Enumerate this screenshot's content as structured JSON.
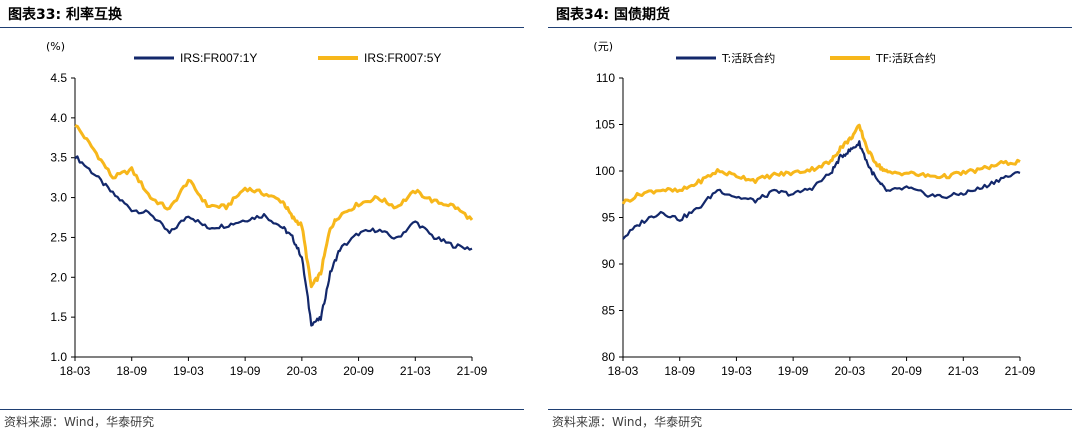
{
  "panels": [
    {
      "fig_title": "图表33:  利率互换",
      "source": "资料来源：Wind，华泰研究"
    },
    {
      "fig_title": "图表34:  国债期货",
      "source": "资料来源：Wind，华泰研究"
    }
  ],
  "chart_data": [
    {
      "type": "line",
      "title": "",
      "unit_label": "(%)",
      "xlabel": "",
      "ylabel": "",
      "ylim": [
        1.0,
        4.5
      ],
      "yticks": [
        "1.0",
        "1.5",
        "2.0",
        "2.5",
        "3.0",
        "3.5",
        "4.0",
        "4.5"
      ],
      "xticks": [
        "18-03",
        "18-09",
        "19-03",
        "19-09",
        "20-03",
        "20-09",
        "21-03",
        "21-09"
      ],
      "x_months": [
        "2018-03",
        "2018-05",
        "2018-07",
        "2018-09",
        "2018-11",
        "2019-01",
        "2019-03",
        "2019-05",
        "2019-07",
        "2019-09",
        "2019-11",
        "2020-01",
        "2020-02",
        "2020-03",
        "2020-04",
        "2020-05",
        "2020-06",
        "2020-07",
        "2020-09",
        "2020-11",
        "2021-01",
        "2021-03",
        "2021-05",
        "2021-07",
        "2021-09"
      ],
      "grid": false,
      "legend": "top-center",
      "series": [
        {
          "name": "IRS:FR007:1Y",
          "color": "#13286b",
          "values": [
            3.52,
            3.3,
            3.05,
            2.85,
            2.8,
            2.55,
            2.78,
            2.62,
            2.65,
            2.72,
            2.78,
            2.62,
            2.5,
            2.25,
            1.42,
            1.48,
            2.05,
            2.35,
            2.55,
            2.6,
            2.48,
            2.7,
            2.5,
            2.4,
            2.36
          ]
        },
        {
          "name": "IRS:FR007:5Y",
          "color": "#f7b71b",
          "values": [
            3.92,
            3.6,
            3.25,
            3.35,
            3.0,
            2.85,
            3.22,
            2.9,
            2.88,
            3.12,
            3.05,
            2.95,
            2.75,
            2.65,
            1.88,
            2.05,
            2.62,
            2.78,
            2.92,
            3.0,
            2.88,
            3.08,
            2.95,
            2.9,
            2.72
          ]
        }
      ]
    },
    {
      "type": "line",
      "title": "",
      "unit_label": "(元)",
      "xlabel": "",
      "ylabel": "",
      "ylim": [
        80,
        110
      ],
      "yticks": [
        "80",
        "85",
        "90",
        "95",
        "100",
        "105",
        "110"
      ],
      "xticks": [
        "18-03",
        "18-09",
        "19-03",
        "19-09",
        "20-03",
        "20-09",
        "21-03",
        "21-09"
      ],
      "x_months": [
        "2018-03",
        "2018-05",
        "2018-07",
        "2018-09",
        "2018-11",
        "2019-01",
        "2019-03",
        "2019-05",
        "2019-07",
        "2019-09",
        "2019-11",
        "2020-01",
        "2020-02",
        "2020-03",
        "2020-04",
        "2020-05",
        "2020-06",
        "2020-07",
        "2020-09",
        "2020-11",
        "2021-01",
        "2021-03",
        "2021-05",
        "2021-07",
        "2021-09"
      ],
      "grid": false,
      "legend": "top-center",
      "series": [
        {
          "name": "T:活跃合约",
          "color": "#13286b",
          "values": [
            92.8,
            94.5,
            95.6,
            94.8,
            96.0,
            98.0,
            97.2,
            96.8,
            97.8,
            97.5,
            98.2,
            99.8,
            101.5,
            102.2,
            103.0,
            100.5,
            98.8,
            97.8,
            98.2,
            97.5,
            97.2,
            97.6,
            98.2,
            99.2,
            99.8
          ]
        },
        {
          "name": "TF:活跃合约",
          "color": "#f7b71b",
          "values": [
            96.6,
            97.6,
            98.0,
            97.8,
            98.8,
            100.0,
            99.5,
            99.0,
            99.6,
            99.8,
            100.2,
            101.0,
            102.5,
            103.4,
            104.8,
            102.0,
            100.6,
            99.8,
            99.8,
            99.5,
            99.4,
            99.8,
            100.2,
            100.8,
            101.0
          ]
        }
      ]
    }
  ]
}
